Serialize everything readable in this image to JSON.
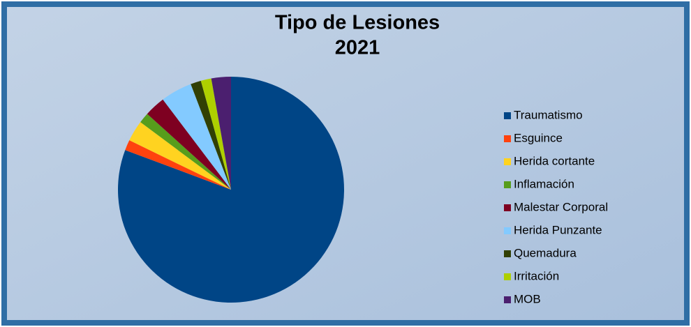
{
  "chart_data": {
    "type": "pie",
    "title": "Tipo de Lesiones",
    "subtitle": "2021",
    "categories": [
      "Traumatismo",
      "Esguince",
      "Herida cortante",
      "Inflamación",
      "Malestar Corporal",
      "Herida Punzante",
      "Quemadura",
      "Irritación",
      "MOB"
    ],
    "values": [
      80.7,
      1.5,
      3,
      1.5,
      3,
      4.5,
      1.5,
      1.5,
      2.8
    ],
    "colors": [
      "#004586",
      "#ff420e",
      "#ffd320",
      "#579d1c",
      "#7e0021",
      "#83caff",
      "#314004",
      "#aecf00",
      "#4b1f6f"
    ],
    "legend": "right"
  }
}
